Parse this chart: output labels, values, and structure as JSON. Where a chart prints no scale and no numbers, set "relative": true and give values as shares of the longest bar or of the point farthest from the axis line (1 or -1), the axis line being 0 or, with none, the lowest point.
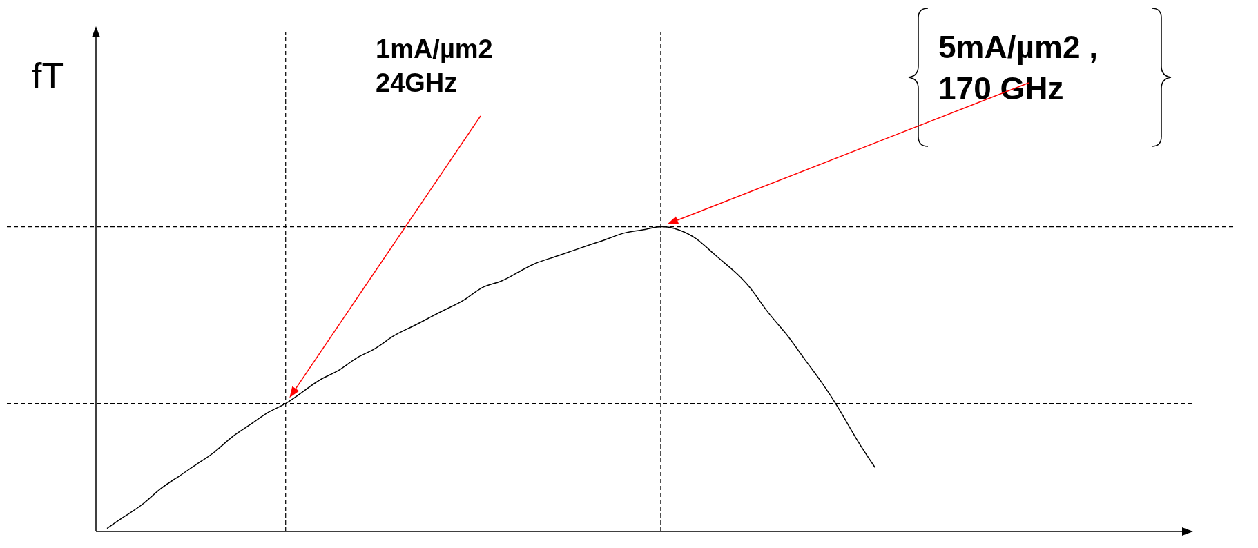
{
  "chart_data": {
    "type": "line",
    "relative": true,
    "ylabel": "fT",
    "marker": "none",
    "categories": [
      null,
      null,
      null,
      null,
      null,
      null,
      null,
      null,
      null,
      null,
      null,
      null,
      null,
      null,
      null,
      null,
      null,
      null,
      null,
      null,
      null,
      null,
      null,
      null,
      null,
      null,
      null,
      null,
      null,
      null,
      null,
      null,
      null,
      null,
      null,
      null,
      null,
      null,
      null,
      null,
      null,
      null,
      null,
      null
    ],
    "series": [
      {
        "color": "#000000",
        "values": [
          0.01,
          0.05,
          0.09,
          0.14,
          0.18,
          0.22,
          0.26,
          0.31,
          0.35,
          0.39,
          0.42,
          0.46,
          0.5,
          0.53,
          0.57,
          0.6,
          0.64,
          0.67,
          0.7,
          0.73,
          0.76,
          0.8,
          0.82,
          0.85,
          0.88,
          0.9,
          0.92,
          0.94,
          0.96,
          0.98,
          0.99,
          1,
          0.99,
          0.96,
          0.91,
          0.86,
          0.8,
          0.72,
          0.65,
          0.57,
          0.49,
          0.4,
          0.3,
          0.21
        ]
      }
    ],
    "ref_lines": [
      {
        "axis": "y",
        "value": 0.42,
        "line_style": "dashed",
        "color": "#000000"
      }
    ],
    "annotations": [
      "1mA/µm2\n24GHz",
      "5mA/µm2 ,\n170 GHz"
    ]
  }
}
